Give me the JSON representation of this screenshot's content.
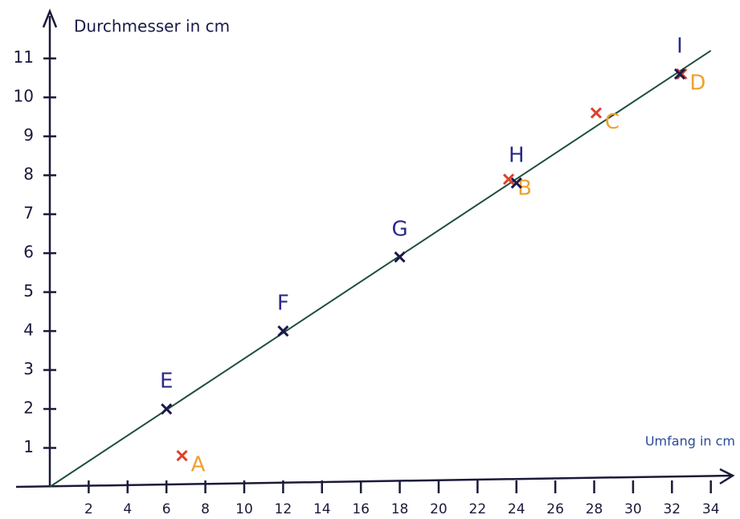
{
  "chart_data": {
    "type": "scatter",
    "y_label": "Durchmesser in cm",
    "x_label": "Umfang in cm",
    "xlim": [
      0,
      35.5
    ],
    "ylim": [
      0,
      12.5
    ],
    "xticks": [
      2,
      4,
      6,
      8,
      10,
      12,
      14,
      16,
      18,
      20,
      22,
      24,
      26,
      28,
      30,
      32,
      34
    ],
    "yticks": [
      1,
      2,
      3,
      4,
      5,
      6,
      7,
      8,
      9,
      10,
      11
    ],
    "grid": false,
    "line": {
      "color": "#1f4f3a",
      "x": [
        0,
        34
      ],
      "y": [
        0,
        11.2
      ]
    },
    "series": [
      {
        "color": "#e0402a",
        "label_color": "#f0a030",
        "labels": [
          "A",
          "B",
          "C",
          "D"
        ],
        "x": [
          6.8,
          23.6,
          28.1,
          32.5
        ],
        "values": [
          0.8,
          7.9,
          9.6,
          10.6
        ]
      },
      {
        "color": "#1a1a4a",
        "label_color": "#2a2a8a",
        "labels": [
          "E",
          "F",
          "G",
          "H",
          "I"
        ],
        "x": [
          6,
          12,
          18,
          24,
          32.4
        ],
        "values": [
          2,
          4,
          5.9,
          7.8,
          10.6
        ]
      }
    ]
  }
}
